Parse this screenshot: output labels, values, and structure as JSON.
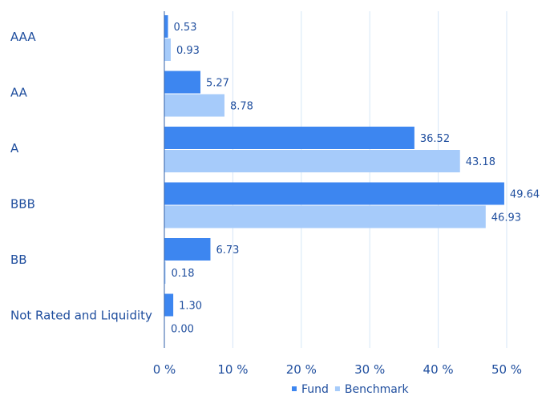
{
  "chart_data": {
    "type": "bar",
    "orientation": "horizontal",
    "categories": [
      "AAA",
      "AA",
      "A",
      "BBB",
      "BB",
      "Not Rated and Liquidity"
    ],
    "series": [
      {
        "name": "Fund",
        "values": [
          0.53,
          5.27,
          36.52,
          49.64,
          6.73,
          1.3
        ],
        "labels": [
          "0.53",
          "5.27",
          "36.52",
          "49.64",
          "6.73",
          "1.30"
        ],
        "color": "#3d86f0"
      },
      {
        "name": "Benchmark",
        "values": [
          0.93,
          8.78,
          43.18,
          46.93,
          0.18,
          0.0
        ],
        "labels": [
          "0.93",
          "8.78",
          "43.18",
          "46.93",
          "0.18",
          "0.00"
        ],
        "color": "#a6cbfa"
      }
    ],
    "xlim": [
      0,
      50
    ],
    "xticks": [
      0,
      10,
      20,
      30,
      40,
      50
    ],
    "xtick_labels": [
      "0 %",
      "10 %",
      "20 %",
      "30 %",
      "40 %",
      "50 %"
    ],
    "grid": true,
    "legend_position": "bottom-right",
    "label_color": "#1f4e9e",
    "grid_color": "#d6e6f7",
    "axis_color": "#2f5fa8"
  }
}
